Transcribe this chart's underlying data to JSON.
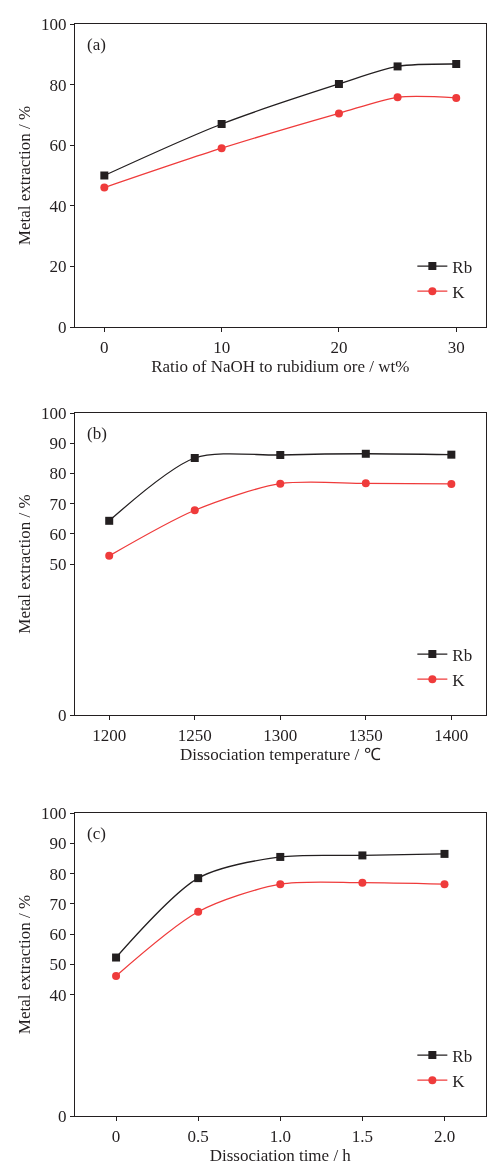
{
  "chart_data": [
    {
      "type": "line",
      "xlabel": "Ratio of NaOH to rubidium ore / wt%",
      "ylabel": "Metal extraction / %",
      "annotations": [
        "(a)"
      ],
      "x": [
        0,
        10,
        20,
        25,
        30
      ],
      "xlim": [
        -2.5,
        32.5
      ],
      "xticks": [
        0,
        10,
        20,
        30
      ],
      "ylim": [
        0,
        100
      ],
      "yticks": [
        0,
        20,
        40,
        60,
        80,
        100
      ],
      "series": [
        {
          "name": "Rb",
          "color": "#231f20",
          "marker": "square",
          "values": [
            50,
            67,
            80.2,
            86,
            86.8
          ]
        },
        {
          "name": "K",
          "color": "#ef3b3b",
          "marker": "circle",
          "values": [
            46,
            59,
            70.5,
            75.8,
            75.6
          ]
        }
      ],
      "legend": "bottom right"
    },
    {
      "type": "line",
      "xlabel": "Dissociation temperature / ℃",
      "ylabel": "Metal extraction / %",
      "annotations": [
        "(b)"
      ],
      "x": [
        1200,
        1250,
        1300,
        1350,
        1400
      ],
      "xlim": [
        1180,
        1420
      ],
      "xticks": [
        1200,
        1250,
        1300,
        1350,
        1400
      ],
      "ylim": [
        0,
        100
      ],
      "yticks": [
        0,
        50,
        60,
        70,
        80,
        90,
        100
      ],
      "series": [
        {
          "name": "Rb",
          "color": "#231f20",
          "marker": "square",
          "values": [
            64.3,
            85.1,
            86.1,
            86.5,
            86.2
          ]
        },
        {
          "name": "K",
          "color": "#ef3b3b",
          "marker": "circle",
          "values": [
            52.7,
            67.8,
            76.6,
            76.7,
            76.5
          ]
        }
      ],
      "legend": "bottom right"
    },
    {
      "type": "line",
      "xlabel": "Dissociation time / h",
      "ylabel": "Metal extraction / %",
      "annotations": [
        "(c)"
      ],
      "x": [
        0,
        0.5,
        1.0,
        1.5,
        2.0
      ],
      "xlim": [
        -0.25,
        2.25
      ],
      "xticks": [
        0,
        {
          "value": 0.5,
          "label": "0.5"
        },
        {
          "value": 1.0,
          "label": "1.0"
        },
        {
          "value": 1.5,
          "label": "1.5"
        },
        {
          "value": 2.0,
          "label": "2.0"
        }
      ],
      "ylim": [
        0,
        100
      ],
      "yticks": [
        0,
        40,
        50,
        60,
        70,
        80,
        90,
        100
      ],
      "series": [
        {
          "name": "Rb",
          "color": "#231f20",
          "marker": "square",
          "values": [
            52.3,
            78.5,
            85.5,
            86,
            86.5
          ]
        },
        {
          "name": "K",
          "color": "#ef3b3b",
          "marker": "circle",
          "values": [
            46.2,
            67.4,
            76.5,
            77,
            76.5
          ]
        }
      ],
      "legend": "bottom right"
    }
  ]
}
